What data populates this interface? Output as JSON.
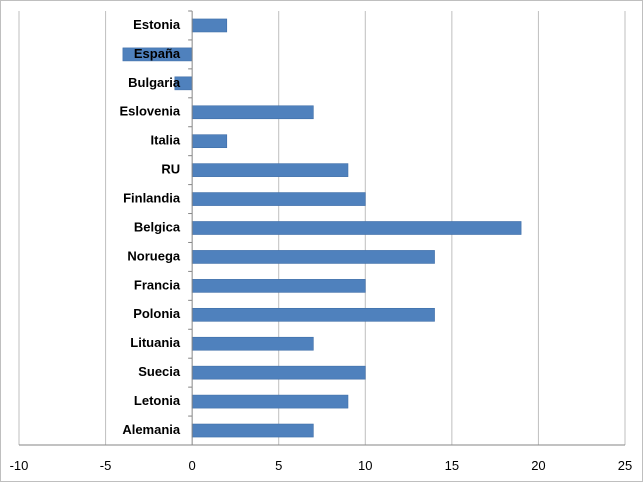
{
  "chart_data": {
    "type": "bar",
    "orientation": "horizontal",
    "title": "",
    "xlabel": "",
    "ylabel": "",
    "categories": [
      "Estonia",
      "España",
      "Bulgaria",
      "Eslovenia",
      "Italia",
      "RU",
      "Finlandia",
      "Belgica",
      "Noruega",
      "Francia",
      "Polonia",
      "Lituania",
      "Suecia",
      "Letonia",
      "Alemania"
    ],
    "values": [
      2,
      -4,
      -1,
      7,
      2,
      9,
      10,
      19,
      14,
      10,
      14,
      7,
      10,
      9,
      7
    ],
    "xlim": [
      -10,
      25
    ],
    "x_ticks": [
      -10,
      -5,
      0,
      5,
      10,
      15,
      20,
      25
    ],
    "grid": "vertical major gridlines",
    "legend": "none",
    "bar_color": "#4f81bd"
  }
}
